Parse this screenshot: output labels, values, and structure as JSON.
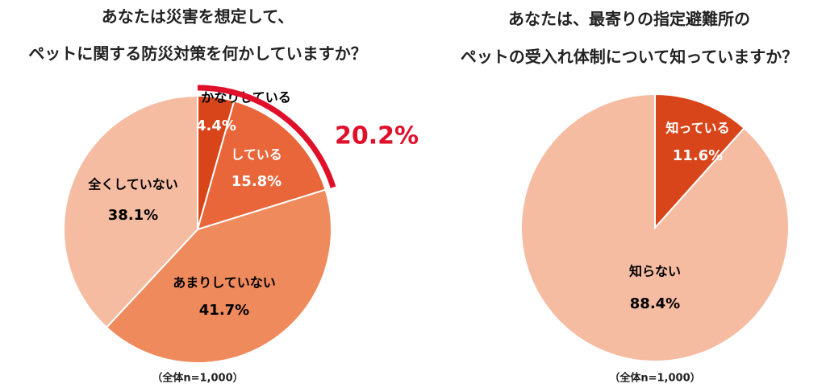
{
  "chart_data": [
    {
      "type": "pie",
      "title": [
        "あなたは災害を想定して、",
        "ペットに関する防災対策を何かしていますか？"
      ],
      "categories": [
        "かなりしている",
        "している",
        "あまりしていない",
        "全くしていない"
      ],
      "values": [
        4.4,
        15.8,
        41.7,
        38.1
      ],
      "value_labels": [
        "4.4%",
        "15.8%",
        "41.7%",
        "38.1%"
      ],
      "colors": [
        "#d9451a",
        "#e8663a",
        "#ef8a5c",
        "#f6bca2"
      ],
      "highlight": {
        "value": 20.2,
        "label": "20.2%",
        "color": "#e0102a"
      },
      "note": "（全体n=1,000）"
    },
    {
      "type": "pie",
      "title": [
        "あなたは、最寄りの指定避難所の",
        "ペットの受入れ体制について知っていますか？"
      ],
      "categories": [
        "知っている",
        "知らない"
      ],
      "values": [
        11.6,
        88.4
      ],
      "value_labels": [
        "11.6%",
        "88.4%"
      ],
      "colors": [
        "#d9451a",
        "#f6bca2"
      ],
      "note": "（全体n=1,000）"
    }
  ]
}
